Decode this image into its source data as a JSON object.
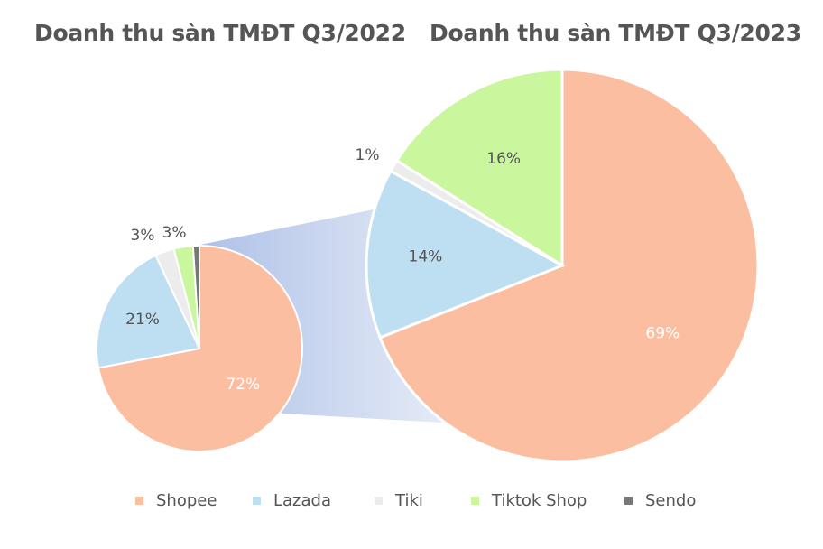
{
  "colors": {
    "Shopee": "#fcbea0",
    "Lazada": "#bedff2",
    "Tiki": "#ececec",
    "Tiktok Shop": "#caf79e",
    "Sendo": "#777777"
  },
  "chart_data": [
    {
      "type": "pie",
      "title": "Doanh thu sàn TMĐT Q3/2022",
      "categories": [
        "Shopee",
        "Lazada",
        "Tiki",
        "Tiktok Shop",
        "Sendo"
      ],
      "values": [
        72,
        21,
        3,
        3,
        1
      ],
      "data_labels": [
        "72%",
        "21%",
        "3%",
        "3%",
        ""
      ]
    },
    {
      "type": "pie",
      "title": "Doanh thu sàn TMĐT Q3/2023",
      "categories": [
        "Shopee",
        "Lazada",
        "Tiki",
        "Tiktok Shop",
        "Sendo"
      ],
      "values": [
        69,
        14,
        1,
        16,
        0
      ],
      "data_labels": [
        "69%",
        "14%",
        "1%",
        "16%",
        ""
      ]
    }
  ],
  "legend": {
    "position": "bottom",
    "items": [
      "Shopee",
      "Lazada",
      "Tiki",
      "Tiktok Shop",
      "Sendo"
    ]
  }
}
